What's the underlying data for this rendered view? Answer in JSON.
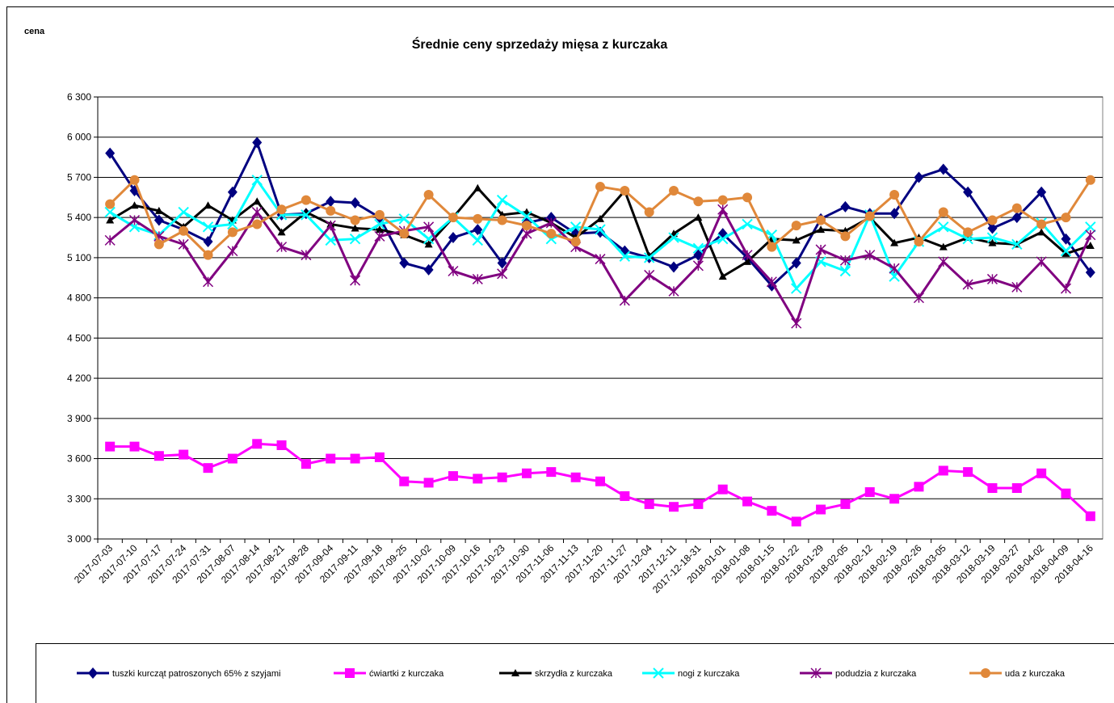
{
  "chart_data": {
    "type": "line",
    "title": "Średnie ceny sprzedaży mięsa z kurczaka",
    "y_label": "cena",
    "categories": [
      "2017-07-03",
      "2017-07-10",
      "2017-07-17",
      "2017-07-24",
      "2017-07-31",
      "2017-08-07",
      "2017-08-14",
      "2017-08-21",
      "2017-08-28",
      "2017-09-04",
      "2017-09-11",
      "2017-09-18",
      "2017-09-25",
      "2017-10-02",
      "2017-10-09",
      "2017-10-16",
      "2017-10-23",
      "2017-10-30",
      "2017-11-06",
      "2017-11-13",
      "2017-11-20",
      "2017-11-27",
      "2017-12-04",
      "2017-12-11",
      "2017-12-18-31",
      "2018-01-01",
      "2018-01-08",
      "2018-01-15",
      "2018-01-22",
      "2018-01-29",
      "2018-02-05",
      "2018-02-12",
      "2018-02-19",
      "2018-02-26",
      "2018-03-05",
      "2018-03-12",
      "2018-03-19",
      "2018-03-27",
      "2018-04-02",
      "2018-04-09",
      "2018-04-16"
    ],
    "series": [
      {
        "name": "tuszki kurcząt patroszonych 65% z szyjami",
        "color": "#000080",
        "marker": "diamond",
        "values": [
          5880,
          5600,
          5380,
          5310,
          5220,
          5590,
          5960,
          5420,
          5430,
          5520,
          5510,
          5400,
          5060,
          5010,
          5250,
          5310,
          5060,
          5360,
          5400,
          5280,
          5290,
          5150,
          5100,
          5030,
          5120,
          5280,
          5100,
          4890,
          5060,
          5390,
          5480,
          5430,
          5430,
          5700,
          5760,
          5590,
          5320,
          5400,
          5590,
          5240,
          4990
        ]
      },
      {
        "name": "ćwiartki z kurczaka",
        "color": "#ff00ff",
        "marker": "square",
        "values": [
          3690,
          3690,
          3620,
          3630,
          3530,
          3600,
          3710,
          3700,
          3560,
          3600,
          3600,
          3610,
          3430,
          3420,
          3470,
          3450,
          3460,
          3490,
          3500,
          3460,
          3430,
          3320,
          3260,
          3240,
          3260,
          3370,
          3280,
          3210,
          3130,
          3220,
          3260,
          3350,
          3300,
          3390,
          3510,
          3500,
          3380,
          3380,
          3490,
          3340,
          3170
        ]
      },
      {
        "name": "skrzydła z kurczaka",
        "color": "#000000",
        "marker": "triangle",
        "values": [
          5380,
          5490,
          5450,
          5330,
          5490,
          5380,
          5520,
          5290,
          5440,
          5350,
          5320,
          5310,
          5270,
          5200,
          5400,
          5620,
          5420,
          5440,
          5360,
          5250,
          5390,
          5600,
          5110,
          5280,
          5400,
          4960,
          5070,
          5240,
          5230,
          5310,
          5300,
          5400,
          5210,
          5250,
          5180,
          5250,
          5210,
          5200,
          5290,
          5130,
          5190
        ]
      },
      {
        "name": "nogi z kurczaka",
        "color": "#00ffff",
        "marker": "x",
        "values": [
          5440,
          5330,
          5270,
          5440,
          5330,
          5350,
          5680,
          5420,
          5420,
          5230,
          5240,
          5350,
          5390,
          5240,
          5400,
          5230,
          5530,
          5410,
          5240,
          5330,
          5310,
          5110,
          5100,
          5250,
          5170,
          5240,
          5350,
          5270,
          4870,
          5070,
          5000,
          5420,
          4960,
          5220,
          5330,
          5240,
          5250,
          5200,
          5360,
          5150,
          5330
        ]
      },
      {
        "name": "podudzia z kurczaka",
        "color": "#800080",
        "marker": "star",
        "values": [
          5230,
          5380,
          5260,
          5200,
          4920,
          5150,
          5440,
          5180,
          5120,
          5340,
          4930,
          5260,
          5300,
          5330,
          5000,
          4940,
          4980,
          5280,
          5360,
          5180,
          5090,
          4780,
          4970,
          4850,
          5040,
          5460,
          5120,
          4920,
          4610,
          5160,
          5080,
          5120,
          5020,
          4800,
          5070,
          4900,
          4940,
          4880,
          5070,
          4870,
          5270
        ]
      },
      {
        "name": "uda z kurczaka",
        "color": "#e0883a",
        "marker": "circle",
        "values": [
          5500,
          5680,
          5200,
          5300,
          5120,
          5290,
          5350,
          5460,
          5530,
          5450,
          5380,
          5420,
          5280,
          5570,
          5400,
          5390,
          5380,
          5340,
          5280,
          5220,
          5630,
          5600,
          5440,
          5600,
          5520,
          5530,
          5550,
          5180,
          5340,
          5380,
          5260,
          5410,
          5570,
          5220,
          5440,
          5290,
          5380,
          5470,
          5350,
          5400,
          5680
        ]
      }
    ],
    "ylim": [
      3000,
      6300
    ],
    "yticks": [
      {
        "value": 3000,
        "label": "3 000"
      },
      {
        "value": 3300,
        "label": "3 300"
      },
      {
        "value": 3600,
        "label": "3 600"
      },
      {
        "value": 3900,
        "label": "3 900"
      },
      {
        "value": 4200,
        "label": "4 200"
      },
      {
        "value": 4500,
        "label": "4 500"
      },
      {
        "value": 4800,
        "label": "4 800"
      },
      {
        "value": 5100,
        "label": "5 100"
      },
      {
        "value": 5400,
        "label": "5 400"
      },
      {
        "value": 5700,
        "label": "5 700"
      },
      {
        "value": 6000,
        "label": "6 000"
      },
      {
        "value": 6300,
        "label": "6 300"
      }
    ],
    "grid": true,
    "legend": "bottom"
  }
}
